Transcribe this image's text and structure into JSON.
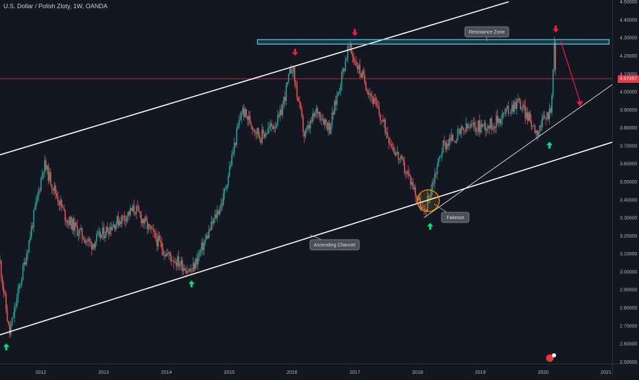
{
  "chart_data": {
    "type": "candlestick",
    "title": "U.S. Dollar / Polish Zloty, 1W, OANDA",
    "xlabel": "",
    "ylabel": "",
    "x_ticks": [
      "2012",
      "2013",
      "2014",
      "2015",
      "2016",
      "2017",
      "2018",
      "2019",
      "2020",
      "2021"
    ],
    "y_ticks": [
      "4.50000",
      "4.40000",
      "4.30000",
      "4.20000",
      "4.10000",
      "4.00000",
      "3.90000",
      "3.80000",
      "3.70000",
      "3.60000",
      "3.50000",
      "3.40000",
      "3.30000",
      "3.20000",
      "3.10000",
      "3.00000",
      "2.90000",
      "2.80000",
      "2.70000",
      "2.60000",
      "2.50000"
    ],
    "xlim": [
      2011.35,
      2021.1
    ],
    "ylim": [
      2.49,
      4.51
    ],
    "grid": false,
    "last_price": "4.07257",
    "key_points": [
      {
        "x": 2011.35,
        "y": 3.05
      },
      {
        "x": 2011.5,
        "y": 2.65
      },
      {
        "x": 2011.8,
        "y": 3.15
      },
      {
        "x": 2012.05,
        "y": 3.6
      },
      {
        "x": 2012.4,
        "y": 3.3
      },
      {
        "x": 2012.8,
        "y": 3.15
      },
      {
        "x": 2013.1,
        "y": 3.25
      },
      {
        "x": 2013.5,
        "y": 3.35
      },
      {
        "x": 2014.0,
        "y": 3.1
      },
      {
        "x": 2014.4,
        "y": 3.0
      },
      {
        "x": 2014.9,
        "y": 3.4
      },
      {
        "x": 2015.2,
        "y": 3.9
      },
      {
        "x": 2015.5,
        "y": 3.75
      },
      {
        "x": 2015.8,
        "y": 3.85
      },
      {
        "x": 2016.0,
        "y": 4.15
      },
      {
        "x": 2016.2,
        "y": 3.75
      },
      {
        "x": 2016.4,
        "y": 3.9
      },
      {
        "x": 2016.6,
        "y": 3.8
      },
      {
        "x": 2016.9,
        "y": 4.25
      },
      {
        "x": 2017.3,
        "y": 3.95
      },
      {
        "x": 2017.6,
        "y": 3.7
      },
      {
        "x": 2017.9,
        "y": 3.5
      },
      {
        "x": 2018.1,
        "y": 3.32
      },
      {
        "x": 2018.4,
        "y": 3.7
      },
      {
        "x": 2018.8,
        "y": 3.8
      },
      {
        "x": 2019.2,
        "y": 3.82
      },
      {
        "x": 2019.6,
        "y": 3.95
      },
      {
        "x": 2019.9,
        "y": 3.78
      },
      {
        "x": 2020.12,
        "y": 3.9
      },
      {
        "x": 2020.18,
        "y": 4.27
      },
      {
        "x": 2020.2,
        "y": 4.07
      }
    ],
    "annotations": [
      {
        "id": "resistance",
        "text": "Resistance Zone"
      },
      {
        "id": "channel",
        "text": "Ascending Channel"
      },
      {
        "id": "fakeout",
        "text": "Fakeout"
      }
    ],
    "trend_lines": [
      {
        "name": "upper-channel",
        "from": {
          "x": 2011.35,
          "y": 3.65
        },
        "to": {
          "x": 2019.45,
          "y": 4.5
        }
      },
      {
        "name": "lower-channel",
        "from": {
          "x": 2011.35,
          "y": 2.65
        },
        "to": {
          "x": 2021.1,
          "y": 3.72
        }
      },
      {
        "name": "support-trend",
        "from": {
          "x": 2018.1,
          "y": 3.3
        },
        "to": {
          "x": 2021.1,
          "y": 4.04
        }
      }
    ],
    "resistance_zone": {
      "x_from": 2015.45,
      "x_to": 2021.05,
      "y_low": 4.265,
      "y_high": 4.29
    },
    "projection": {
      "from": {
        "x": 2020.28,
        "y": 4.28
      },
      "to": {
        "x": 2020.6,
        "y": 3.93
      }
    },
    "up_arrows": [
      {
        "x": 2011.45,
        "y": 2.64
      },
      {
        "x": 2014.4,
        "y": 2.99
      },
      {
        "x": 2018.2,
        "y": 3.31
      },
      {
        "x": 2020.1,
        "y": 3.76
      }
    ],
    "down_arrows": [
      {
        "x": 2016.05,
        "y": 4.17
      },
      {
        "x": 2017.0,
        "y": 4.28
      },
      {
        "x": 2020.2,
        "y": 4.3
      }
    ],
    "colors": {
      "background": "#131722",
      "bull": "#26a69a",
      "bear": "#ef5350",
      "price_line": "#f23645",
      "zone": "#4dd0e1",
      "up_arrow": "#00e676",
      "down_arrow": "#ff1744",
      "trend": "#ffffff"
    }
  }
}
